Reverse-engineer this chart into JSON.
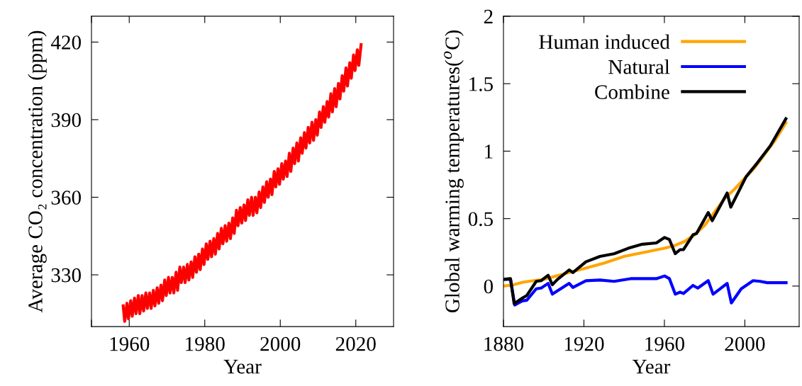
{
  "chart_data": [
    {
      "type": "line",
      "xlabel": "Year",
      "ylabel": "Average CO₂ concentration (ppm)",
      "xlim": [
        1950,
        2030
      ],
      "xticks": [
        {
          "value": 1950,
          "label": null
        },
        1960,
        1980,
        2000,
        2020
      ],
      "ylim": [
        310,
        430
      ],
      "yticks": [
        330,
        360,
        390,
        420
      ],
      "grid": false,
      "legend": false,
      "marker": "none",
      "line_style": "solid",
      "series": [
        {
          "color": "#ff0000",
          "x": [
            1958.4,
            1958.8,
            1959.4,
            1959.8,
            1960.4,
            1960.8,
            1961.4,
            1961.8,
            1962.4,
            1962.8,
            1963.4,
            1963.8,
            1964.4,
            1964.8,
            1965.4,
            1965.8,
            1966.4,
            1966.8,
            1967.4,
            1967.8,
            1968.4,
            1968.8,
            1969.4,
            1969.8,
            1970.4,
            1970.8,
            1971.4,
            1971.8,
            1972.4,
            1972.8,
            1973.4,
            1973.8,
            1974.4,
            1974.8,
            1975.4,
            1975.8,
            1976.4,
            1976.8,
            1977.4,
            1977.8,
            1978.4,
            1978.8,
            1979.4,
            1979.8,
            1980.4,
            1980.8,
            1981.4,
            1981.8,
            1982.4,
            1982.8,
            1983.4,
            1983.8,
            1984.4,
            1984.8,
            1985.4,
            1985.8,
            1986.4,
            1986.8,
            1987.4,
            1987.8,
            1988.4,
            1988.8,
            1989.4,
            1989.8,
            1990.4,
            1990.8,
            1991.4,
            1991.8,
            1992.4,
            1992.8,
            1993.4,
            1993.8,
            1994.4,
            1994.8,
            1995.4,
            1995.8,
            1996.4,
            1996.8,
            1997.4,
            1997.8,
            1998.4,
            1998.8,
            1999.4,
            1999.8,
            2000.4,
            2000.8,
            2001.4,
            2001.8,
            2002.4,
            2002.8,
            2003.4,
            2003.8,
            2004.4,
            2004.8,
            2005.4,
            2005.8,
            2006.4,
            2006.8,
            2007.4,
            2007.8,
            2008.4,
            2008.8,
            2009.4,
            2009.8,
            2010.4,
            2010.8,
            2011.4,
            2011.8,
            2012.4,
            2012.8,
            2013.4,
            2013.8,
            2014.4,
            2014.8,
            2015.4,
            2015.8,
            2016.4,
            2016.8,
            2017.4,
            2017.8,
            2018.4,
            2018.8,
            2019.4,
            2019.8,
            2020.4,
            2020.8,
            2021.4
          ],
          "values": [
            318,
            312,
            319,
            313,
            320,
            314,
            321,
            315,
            322,
            315,
            322,
            316,
            323,
            317,
            323,
            317,
            324,
            318,
            325,
            319,
            326,
            320,
            328,
            322,
            329,
            323,
            329,
            323,
            331,
            324,
            333,
            327,
            333,
            327,
            334,
            328,
            335,
            329,
            337,
            331,
            338,
            332,
            340,
            334,
            342,
            336,
            343,
            337,
            344,
            338,
            346,
            340,
            348,
            342,
            349,
            343,
            350,
            344,
            352,
            346,
            355,
            349,
            356,
            350,
            357,
            351,
            359,
            353,
            360,
            353,
            360,
            354,
            362,
            356,
            364,
            358,
            366,
            360,
            367,
            361,
            370,
            364,
            371,
            365,
            373,
            367,
            374,
            368,
            377,
            370,
            379,
            373,
            381,
            374,
            383,
            377,
            385,
            379,
            387,
            381,
            389,
            382,
            390,
            384,
            393,
            387,
            395,
            389,
            397,
            391,
            400,
            393,
            402,
            395,
            404,
            398,
            407,
            401,
            410,
            403,
            412,
            406,
            415,
            409,
            417,
            411,
            419
          ]
        }
      ]
    },
    {
      "type": "line",
      "xlabel": "Year",
      "ylabel": "Global warming temperatures($^{o}$C)",
      "xlim": [
        1880,
        2027
      ],
      "xticks": [
        1880,
        1920,
        1960,
        2000
      ],
      "ylim": [
        -0.3,
        2
      ],
      "yticks": [
        0,
        0.5,
        1,
        1.5,
        2
      ],
      "grid": false,
      "legend": "top right",
      "marker": "none",
      "line_style": "solid",
      "series": [
        {
          "name": "Human induced",
          "color": "#ffa500",
          "x": [
            1880,
            1885,
            1890,
            1900,
            1910,
            1920,
            1930,
            1940,
            1950,
            1960,
            1965,
            1970,
            1975,
            1980,
            1985,
            1990,
            1995,
            2000,
            2005,
            2010,
            2015,
            2020.4
          ],
          "values": [
            0,
            0.01,
            0.03,
            0.05,
            0.09,
            0.13,
            0.17,
            0.22,
            0.25,
            0.28,
            0.3,
            0.33,
            0.38,
            0.45,
            0.55,
            0.65,
            0.72,
            0.8,
            0.88,
            0.98,
            1.08,
            1.21
          ]
        },
        {
          "name": "Natural",
          "color": "#0000ff",
          "x": [
            1880,
            1883.5,
            1885.6,
            1889.3,
            1891.6,
            1896.3,
            1898.7,
            1902.2,
            1904.3,
            1906.9,
            1912.7,
            1914.5,
            1921,
            1928,
            1935,
            1943.2,
            1951.4,
            1956,
            1960.1,
            1962.5,
            1965.4,
            1967.8,
            1969.5,
            1974.2,
            1976.6,
            1981.8,
            1984.2,
            1991.2,
            1993.3,
            1998.2,
            2004.1,
            2007.6,
            2011.1,
            2020.5
          ],
          "values": [
            0.05,
            0.05,
            -0.14,
            -0.11,
            -0.105,
            -0.02,
            -0.015,
            0.02,
            -0.06,
            -0.035,
            0.02,
            -0.01,
            0.04,
            0.045,
            0.035,
            0.055,
            0.055,
            0.055,
            0.075,
            0.055,
            -0.06,
            -0.045,
            -0.055,
            0.005,
            -0.015,
            0.04,
            -0.06,
            0.02,
            -0.125,
            -0.02,
            0.04,
            0.035,
            0.025,
            0.025
          ]
        },
        {
          "name": "Combine",
          "color": "#000000",
          "x": [
            1880,
            1883.5,
            1885.3,
            1889.3,
            1891.6,
            1896.3,
            1898.7,
            1902.2,
            1904.3,
            1906.9,
            1912.7,
            1914.5,
            1921,
            1928,
            1935,
            1942,
            1949,
            1956,
            1960.1,
            1962.5,
            1965.4,
            1967.8,
            1969.5,
            1974.2,
            1976,
            1981.8,
            1983.8,
            1991.2,
            1993,
            2000.6,
            2006.3,
            2012.7,
            2020.4
          ],
          "values": [
            0.05,
            0.055,
            -0.13,
            -0.09,
            -0.07,
            0.035,
            0.04,
            0.08,
            0.01,
            0.05,
            0.12,
            0.1,
            0.18,
            0.22,
            0.24,
            0.28,
            0.31,
            0.32,
            0.36,
            0.345,
            0.24,
            0.27,
            0.27,
            0.38,
            0.39,
            0.545,
            0.485,
            0.69,
            0.585,
            0.81,
            0.915,
            1.04,
            1.24
          ]
        }
      ]
    }
  ]
}
